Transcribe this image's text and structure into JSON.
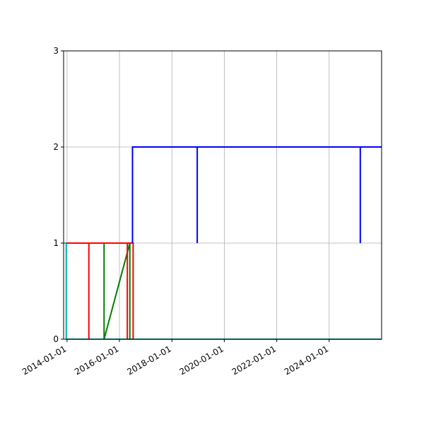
{
  "chart_data": {
    "type": "line",
    "title": "",
    "xlabel": "",
    "ylabel": "",
    "x_axis_type": "date",
    "xlim": [
      "2013-11-14",
      "2026-01-01"
    ],
    "ylim": [
      0,
      3
    ],
    "x_ticks": [
      "2014-01-01",
      "2016-01-01",
      "2018-01-01",
      "2020-01-01",
      "2022-01-01",
      "2024-01-01"
    ],
    "y_ticks": [
      0,
      1,
      2,
      3
    ],
    "grid": true,
    "legend": "none",
    "step": "post",
    "series": [
      {
        "color": "#00bfbf",
        "points": [
          [
            "2013-11-14",
            1
          ],
          [
            "2013-12-20",
            1
          ],
          [
            "2013-12-20",
            0
          ],
          [
            "2026-01-01",
            0
          ]
        ]
      },
      {
        "color": "#008000",
        "points": [
          [
            "2015-06-01",
            1
          ],
          [
            "2015-06-01",
            0
          ],
          [
            "2016-05-25",
            1
          ],
          [
            "2016-05-25",
            0
          ]
        ]
      },
      {
        "color": "#ff0000",
        "points": [
          [
            "2013-12-20",
            1
          ],
          [
            "2014-11-01",
            1
          ],
          [
            "2014-11-01",
            0
          ],
          [
            "2014-11-01",
            1
          ],
          [
            "2016-04-20",
            1
          ],
          [
            "2016-04-20",
            0
          ],
          [
            "2016-04-20",
            1
          ],
          [
            "2016-07-10",
            1
          ],
          [
            "2016-07-10",
            0
          ]
        ]
      },
      {
        "color": "#0000ff",
        "points": [
          [
            "2016-07-01",
            1
          ],
          [
            "2016-07-01",
            2
          ],
          [
            "2018-12-20",
            2
          ],
          [
            "2018-12-20",
            1
          ],
          [
            "2018-12-20",
            2
          ],
          [
            "2025-03-10",
            2
          ],
          [
            "2025-03-10",
            1
          ],
          [
            "2025-03-10",
            2
          ],
          [
            "2026-01-01",
            2
          ]
        ]
      }
    ]
  }
}
